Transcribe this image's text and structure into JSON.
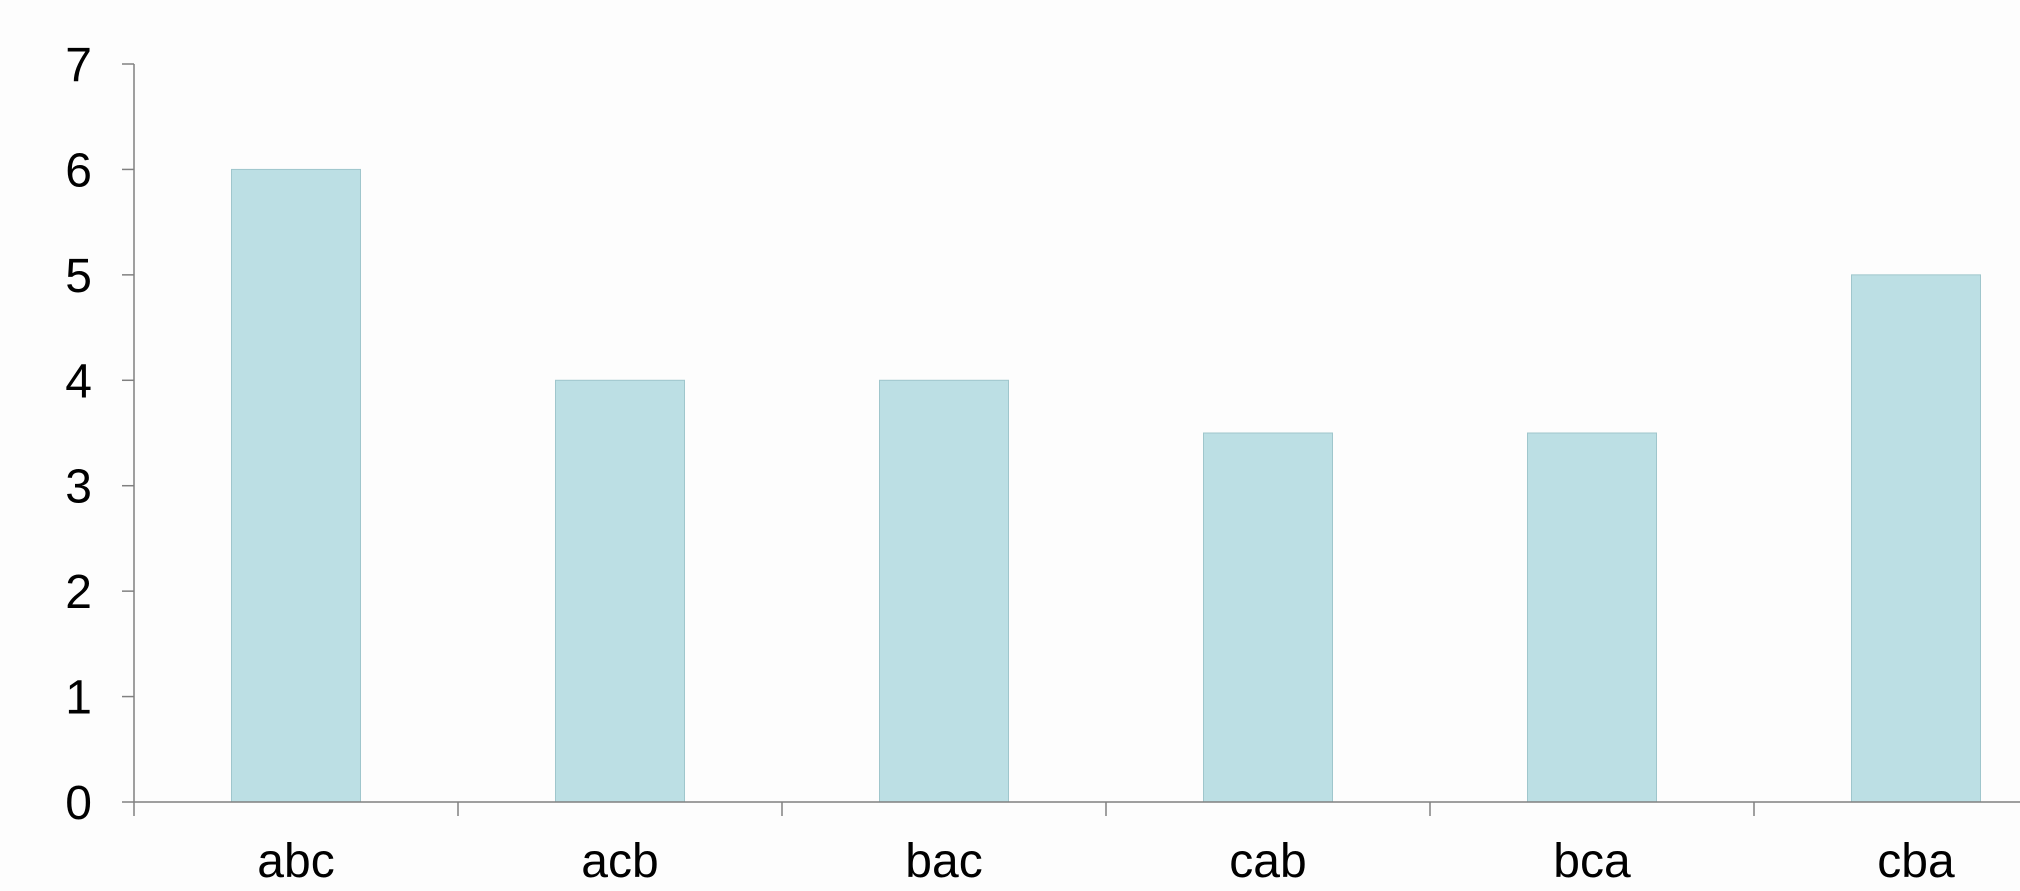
{
  "chart_data": {
    "type": "bar",
    "categories": [
      "abc",
      "acb",
      "bac",
      "cab",
      "bca",
      "cba"
    ],
    "values": [
      6,
      4,
      4,
      3.5,
      3.5,
      5
    ],
    "yticks": [
      "0",
      "1",
      "2",
      "3",
      "4",
      "5",
      "6",
      "7"
    ],
    "title": "",
    "xlabel": "",
    "ylabel": "",
    "ylim": [
      0,
      7
    ],
    "grid": false,
    "legend": "none",
    "bar_color": "#bcdfe4",
    "bar_stroke": "#9fc6cc",
    "axis_color": "#808080",
    "background": "#fdfdfd"
  }
}
